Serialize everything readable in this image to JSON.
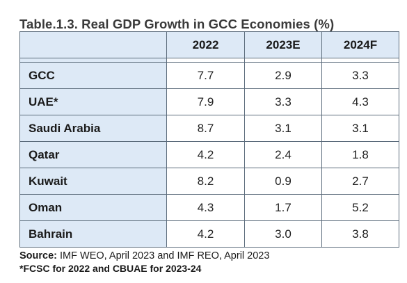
{
  "table": {
    "title": "Table.1.3. Real GDP Growth in GCC Economies (%)",
    "columns": [
      "",
      "2022",
      "2023E",
      "2024F"
    ],
    "rows": [
      {
        "country": "GCC",
        "values": [
          "7.7",
          "2.9",
          "3.3"
        ]
      },
      {
        "country": "UAE*",
        "values": [
          "7.9",
          "3.3",
          "4.3"
        ]
      },
      {
        "country": "Saudi Arabia",
        "values": [
          "8.7",
          "3.1",
          "3.1"
        ]
      },
      {
        "country": "Qatar",
        "values": [
          "4.2",
          "2.4",
          "1.8"
        ]
      },
      {
        "country": "Kuwait",
        "values": [
          "8.2",
          "0.9",
          "2.7"
        ]
      },
      {
        "country": "Oman",
        "values": [
          "4.3",
          "1.7",
          "5.2"
        ]
      },
      {
        "country": "Bahrain",
        "values": [
          "4.2",
          "3.0",
          "3.8"
        ]
      }
    ]
  },
  "notes": {
    "source_label": "Source:",
    "source_text": " IMF WEO, April 2023 and IMF REO, April 2023",
    "footnote": "*FCSC for 2022 and CBUAE for 2023-24"
  },
  "colors": {
    "header_fill": "#dde9f6",
    "border": "#5b6b7b",
    "title_text": "#3a3a3a"
  }
}
